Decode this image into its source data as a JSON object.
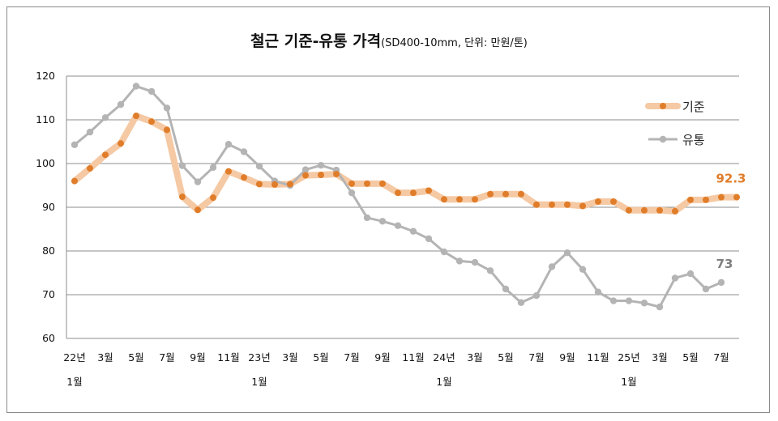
{
  "chart_data": {
    "type": "line",
    "title": "철근 기준-유통 가격",
    "subtitle": "(SD400-10mm, 단위: 만원/톤)",
    "ylim": [
      60,
      120
    ],
    "yticks": [
      60,
      70,
      80,
      90,
      100,
      110,
      120
    ],
    "grid": true,
    "legend_position": "right",
    "x_tick_labels": [
      {
        "index": 0,
        "text": "22년",
        "year_label": "1월"
      },
      {
        "index": 2,
        "text": "3월"
      },
      {
        "index": 4,
        "text": "5월"
      },
      {
        "index": 6,
        "text": "7월"
      },
      {
        "index": 8,
        "text": "9월"
      },
      {
        "index": 10,
        "text": "11월"
      },
      {
        "index": 12,
        "text": "23년",
        "year_label": "1월"
      },
      {
        "index": 14,
        "text": "3월"
      },
      {
        "index": 16,
        "text": "5월"
      },
      {
        "index": 18,
        "text": "7월"
      },
      {
        "index": 20,
        "text": "9월"
      },
      {
        "index": 22,
        "text": "11월"
      },
      {
        "index": 24,
        "text": "24년",
        "year_label": "1월"
      },
      {
        "index": 26,
        "text": "3월"
      },
      {
        "index": 28,
        "text": "5월"
      },
      {
        "index": 30,
        "text": "7월"
      },
      {
        "index": 32,
        "text": "9월"
      },
      {
        "index": 34,
        "text": "11월"
      },
      {
        "index": 36,
        "text": "25년",
        "year_label": "1월"
      },
      {
        "index": 38,
        "text": "3월"
      },
      {
        "index": 40,
        "text": "5월"
      },
      {
        "index": 42,
        "text": "7월"
      }
    ],
    "series": [
      {
        "name": "기준",
        "color": "#e07d2a",
        "band_color": "#f5c9a4",
        "values": [
          96,
          98.9,
          102,
          104.6,
          110.9,
          109.6,
          107.7,
          92.4,
          89.4,
          92.2,
          98.2,
          96.8,
          95.3,
          95.2,
          95.3,
          97.3,
          97.4,
          97.6,
          95.4,
          95.4,
          95.4,
          93.3,
          93.3,
          93.8,
          91.8,
          91.8,
          91.8,
          93,
          93,
          93,
          90.6,
          90.6,
          90.6,
          90.3,
          91.3,
          91.3,
          89.3,
          89.3,
          89.3,
          89.1,
          91.7,
          91.7,
          92.3,
          92.3
        ],
        "end_label": "92.3"
      },
      {
        "name": "유통",
        "color": "#b4b4b4",
        "values": [
          104.3,
          107.2,
          110.5,
          113.5,
          117.7,
          116.5,
          112.7,
          99.5,
          95.8,
          99.1,
          104.4,
          102.7,
          99.4,
          96,
          95,
          98.6,
          99.6,
          98.5,
          93.3,
          87.6,
          86.8,
          85.8,
          84.5,
          82.8,
          79.8,
          77.7,
          77.4,
          75.5,
          71.3,
          68.2,
          69.8,
          76.4,
          79.6,
          75.8,
          70.6,
          68.6,
          68.6,
          68.1,
          67.2,
          73.8,
          74.8,
          71.3,
          72.8
        ],
        "end_label": "73"
      }
    ]
  }
}
